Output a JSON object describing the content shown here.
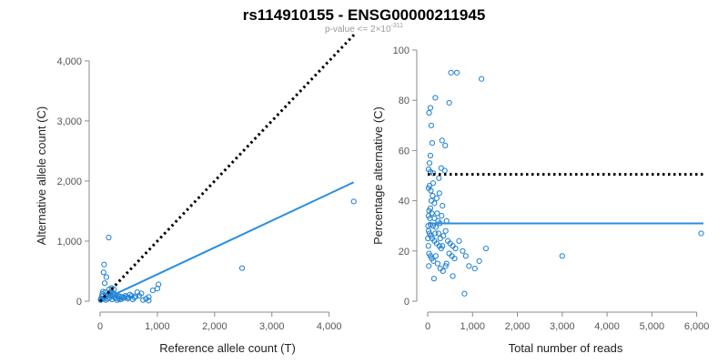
{
  "title": "rs114910155 - ENSG00000211945",
  "subtitle": {
    "prefix": "p-value <= 2×10",
    "exponent": "-311"
  },
  "colors": {
    "points": "#1c7fd1",
    "fit_line": "#2a8ee0",
    "reference_line": "#000000",
    "axes": "#8a8a8a"
  },
  "chart_data": [
    {
      "type": "scatter",
      "xlabel": "Reference allele count (T)",
      "ylabel": "Alternative allele count (C)",
      "xlim": [
        0,
        4450
      ],
      "ylim": [
        0,
        4180
      ],
      "x_ticks": [
        0,
        1000,
        2000,
        3000,
        4000
      ],
      "x_tick_labels": [
        "0",
        "1,000",
        "2,000",
        "3,000",
        "4,000"
      ],
      "y_ticks": [
        0,
        1000,
        2000,
        3000,
        4000
      ],
      "y_tick_labels": [
        "0",
        "1,000",
        "2,000",
        "3,000",
        "4,000"
      ],
      "grid": false,
      "reference_line": {
        "style": "dotted",
        "slope": 1,
        "intercept": 0,
        "x": [
          0,
          4450
        ]
      },
      "fit_line": {
        "x": [
          0,
          4430
        ],
        "y": [
          0,
          1980
        ]
      },
      "points": [
        [
          150,
          1060
        ],
        [
          70,
          610
        ],
        [
          60,
          480
        ],
        [
          110,
          400
        ],
        [
          80,
          300
        ],
        [
          50,
          160
        ],
        [
          40,
          120
        ],
        [
          30,
          80
        ],
        [
          20,
          50
        ],
        [
          15,
          30
        ],
        [
          10,
          20
        ],
        [
          60,
          40
        ],
        [
          90,
          60
        ],
        [
          120,
          90
        ],
        [
          140,
          110
        ],
        [
          160,
          130
        ],
        [
          180,
          150
        ],
        [
          200,
          160
        ],
        [
          220,
          130
        ],
        [
          250,
          120
        ],
        [
          280,
          100
        ],
        [
          310,
          90
        ],
        [
          340,
          80
        ],
        [
          380,
          70
        ],
        [
          420,
          60
        ],
        [
          460,
          70
        ],
        [
          500,
          60
        ],
        [
          550,
          90
        ],
        [
          600,
          60
        ],
        [
          650,
          150
        ],
        [
          680,
          90
        ],
        [
          720,
          130
        ],
        [
          750,
          20
        ],
        [
          800,
          40
        ],
        [
          850,
          70
        ],
        [
          100,
          20
        ],
        [
          130,
          40
        ],
        [
          170,
          60
        ],
        [
          210,
          30
        ],
        [
          240,
          70
        ],
        [
          270,
          50
        ],
        [
          300,
          20
        ],
        [
          330,
          40
        ],
        [
          360,
          30
        ],
        [
          400,
          50
        ],
        [
          440,
          90
        ],
        [
          480,
          40
        ],
        [
          520,
          110
        ],
        [
          570,
          30
        ],
        [
          620,
          80
        ],
        [
          200,
          220
        ],
        [
          240,
          200
        ],
        [
          180,
          90
        ],
        [
          90,
          150
        ],
        [
          160,
          200
        ],
        [
          850,
          10
        ],
        [
          920,
          180
        ],
        [
          1020,
          280
        ],
        [
          1000,
          210
        ],
        [
          2480,
          550
        ],
        [
          4430,
          1660
        ]
      ]
    },
    {
      "type": "scatter",
      "xlabel": "Total number of reads",
      "ylabel": "Percentage alternative (C)",
      "xlim": [
        0,
        6150
      ],
      "ylim": [
        0,
        100
      ],
      "x_ticks": [
        0,
        1000,
        2000,
        3000,
        4000,
        5000,
        6000
      ],
      "x_tick_labels": [
        "0",
        "1,000",
        "2,000",
        "3,000",
        "4,000",
        "5,000",
        "6,000"
      ],
      "y_ticks": [
        0,
        20,
        40,
        60,
        80,
        100
      ],
      "y_tick_labels": [
        "0",
        "20",
        "40",
        "60",
        "80",
        "100"
      ],
      "grid": false,
      "reference_line": {
        "style": "dotted",
        "y": 50.5,
        "x": [
          0,
          6150
        ]
      },
      "fit_line": {
        "x": [
          0,
          6150
        ],
        "y": [
          31,
          31
        ]
      },
      "points": [
        [
          520,
          91
        ],
        [
          650,
          91
        ],
        [
          1200,
          88.5
        ],
        [
          170,
          81
        ],
        [
          480,
          79
        ],
        [
          60,
          77
        ],
        [
          30,
          75
        ],
        [
          80,
          70
        ],
        [
          320,
          64
        ],
        [
          390,
          62
        ],
        [
          100,
          63
        ],
        [
          60,
          58
        ],
        [
          40,
          55
        ],
        [
          20,
          52.5
        ],
        [
          60,
          51.5
        ],
        [
          120,
          51
        ],
        [
          300,
          53
        ],
        [
          380,
          52
        ],
        [
          250,
          49
        ],
        [
          40,
          46
        ],
        [
          20,
          45
        ],
        [
          70,
          44
        ],
        [
          110,
          42
        ],
        [
          200,
          41
        ],
        [
          150,
          39
        ],
        [
          330,
          38
        ],
        [
          60,
          37
        ],
        [
          30,
          36
        ],
        [
          20,
          34
        ],
        [
          90,
          35
        ],
        [
          150,
          33
        ],
        [
          230,
          32
        ],
        [
          270,
          31
        ],
        [
          310,
          34
        ],
        [
          420,
          32
        ],
        [
          60,
          30.5
        ],
        [
          120,
          30
        ],
        [
          180,
          29.5
        ],
        [
          20,
          28
        ],
        [
          40,
          27
        ],
        [
          70,
          26
        ],
        [
          100,
          25
        ],
        [
          150,
          24
        ],
        [
          200,
          23
        ],
        [
          260,
          22
        ],
        [
          300,
          21
        ],
        [
          350,
          26
        ],
        [
          400,
          28
        ],
        [
          450,
          24
        ],
        [
          500,
          23
        ],
        [
          560,
          22
        ],
        [
          620,
          21
        ],
        [
          700,
          24
        ],
        [
          780,
          20
        ],
        [
          850,
          18
        ],
        [
          920,
          14
        ],
        [
          1050,
          13
        ],
        [
          1150,
          16
        ],
        [
          1300,
          21
        ],
        [
          30,
          19
        ],
        [
          60,
          18
        ],
        [
          90,
          17
        ],
        [
          130,
          16
        ],
        [
          180,
          18
        ],
        [
          220,
          15
        ],
        [
          280,
          13
        ],
        [
          340,
          12
        ],
        [
          400,
          14
        ],
        [
          480,
          19
        ],
        [
          540,
          18
        ],
        [
          600,
          17
        ],
        [
          240,
          27
        ],
        [
          280,
          25
        ],
        [
          330,
          22
        ],
        [
          170,
          27
        ],
        [
          210,
          35
        ],
        [
          260,
          43
        ],
        [
          120,
          47
        ],
        [
          80,
          40
        ],
        [
          50,
          33
        ],
        [
          10,
          30
        ],
        [
          5,
          25
        ],
        [
          15,
          22
        ],
        [
          25,
          14
        ],
        [
          140,
          9
        ],
        [
          420,
          15
        ],
        [
          560,
          10
        ],
        [
          820,
          3
        ],
        [
          3000,
          18
        ],
        [
          6100,
          27
        ]
      ]
    }
  ]
}
